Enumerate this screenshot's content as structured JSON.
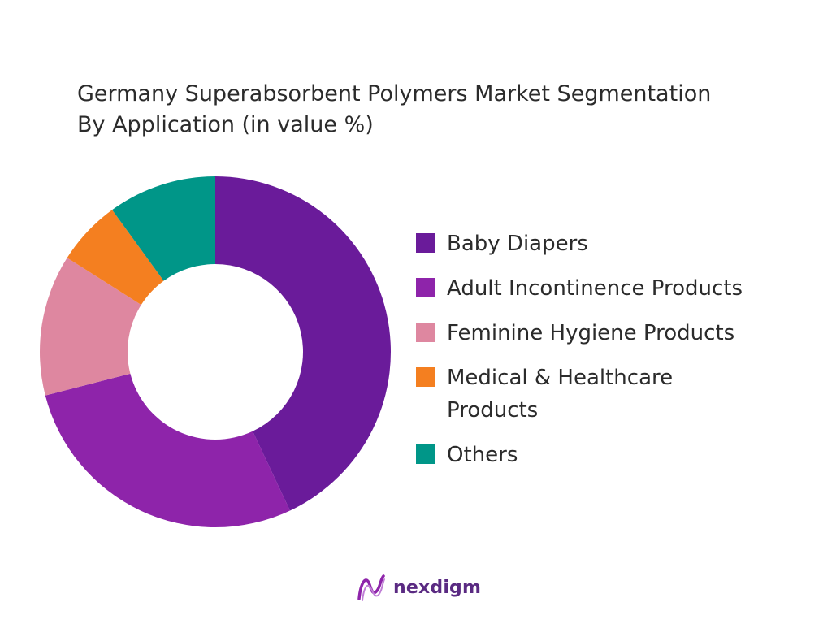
{
  "chart_data": {
    "type": "pie",
    "title_line1": "Germany Superabsorbent Polymers Market Segmentation",
    "title_line2": "By Application (in value %)",
    "series": [
      {
        "name": "Baby Diapers",
        "value": 43,
        "color": "#6a1b9a"
      },
      {
        "name": "Adult Incontinence Products",
        "value": 28,
        "color": "#8e24aa"
      },
      {
        "name": "Feminine Hygiene Products",
        "value": 13,
        "color": "#de87a0"
      },
      {
        "name": "Medical & Healthcare Products",
        "value": 6,
        "color": "#f47f20"
      },
      {
        "name": "Others",
        "value": 10,
        "color": "#009688"
      }
    ],
    "donut": true,
    "legend_position": "right"
  },
  "legend_labels": [
    "Baby Diapers",
    "Adult Incontinence Products",
    "Feminine Hygiene Products",
    "Medical & Healthcare\nProducts",
    "Others"
  ],
  "brand": {
    "name": "nexdigm",
    "icon": "nexdigm-logo-icon"
  }
}
